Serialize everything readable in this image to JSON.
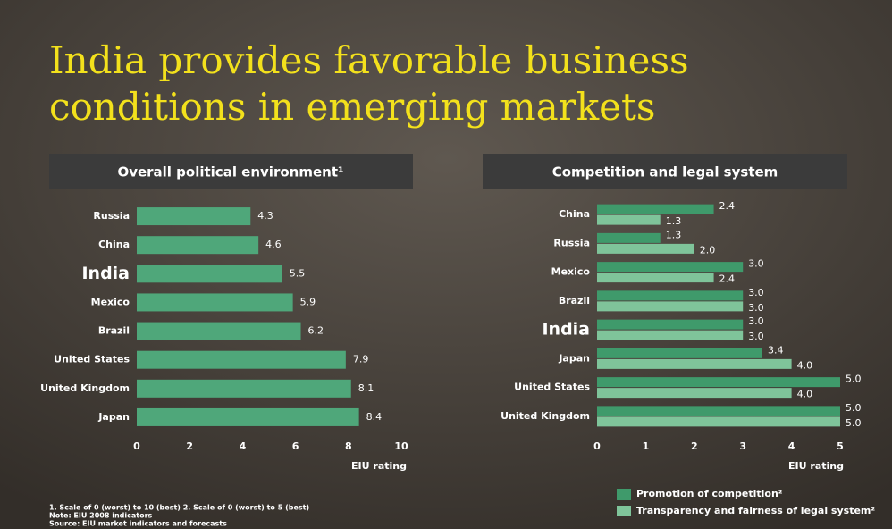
{
  "title": "India provides favorable business conditions in emerging markets",
  "chart_data": [
    {
      "type": "hbar",
      "title": "Overall political environment¹",
      "categories": [
        "Russia",
        "China",
        "India",
        "Mexico",
        "Brazil",
        "United States",
        "United Kingdom",
        "Japan"
      ],
      "values": [
        4.3,
        4.6,
        5.5,
        5.9,
        6.2,
        7.9,
        8.1,
        8.4
      ],
      "color": "#4fa77a",
      "xlim": [
        0,
        10
      ],
      "xticks": [
        0,
        2,
        4,
        6,
        8,
        10
      ],
      "xlabel": "EIU rating"
    },
    {
      "type": "grouped-hbar",
      "title": "Competition and legal system",
      "categories": [
        "China",
        "Russia",
        "Mexico",
        "Brazil",
        "India",
        "Japan",
        "United States",
        "United Kingdom"
      ],
      "series": [
        {
          "name": "Promotion of competition²",
          "color": "#3f9a6b",
          "values": [
            2.4,
            1.3,
            3.0,
            3.0,
            3.0,
            3.4,
            5.0,
            5.0
          ],
          "value_labels": [
            "2.4",
            "1.3",
            "3.0",
            "3.0",
            "3.0",
            "3.4",
            "5.0",
            "5.0"
          ]
        },
        {
          "name": "Transparency and fairness of legal system²",
          "color": "#7fc49a",
          "values": [
            1.3,
            2.0,
            2.4,
            3.0,
            3.0,
            4.0,
            4.0,
            5.0
          ],
          "value_labels": [
            "1.3",
            "2.0",
            "2.4",
            "3.0",
            "3.0",
            "4.0",
            "4.0",
            "5.0"
          ]
        }
      ],
      "xlim": [
        0,
        5
      ],
      "xticks": [
        0,
        1,
        2,
        3,
        4,
        5
      ],
      "xlabel": "EIU rating"
    }
  ],
  "footnotes": [
    "1. Scale of 0 (worst) to 10 (best) 2. Scale of 0 (worst) to 5 (best)",
    "Note: EIU 2008 indicators",
    "Source: EIU market indicators and forecasts"
  ]
}
